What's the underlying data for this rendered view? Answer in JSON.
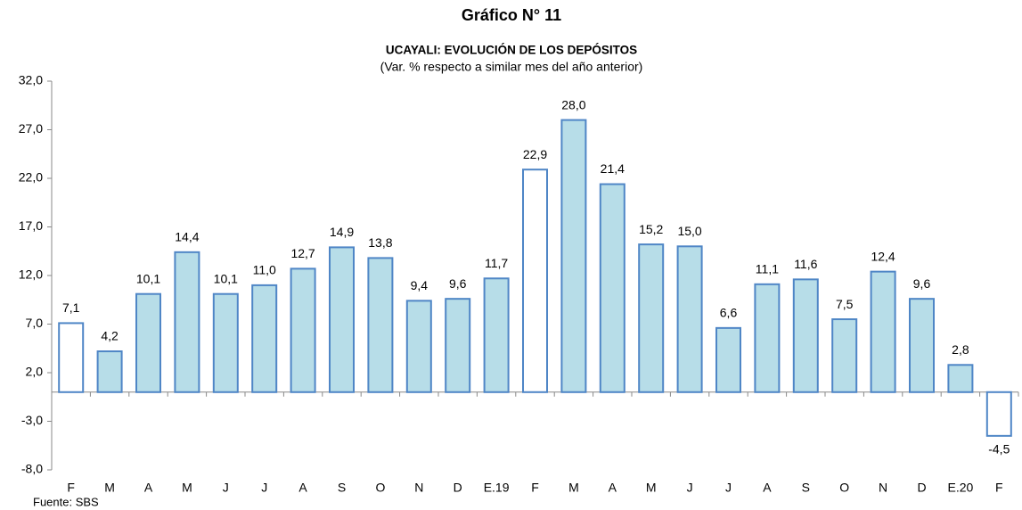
{
  "chart_data": {
    "type": "bar",
    "title": "Gráfico N° 11",
    "subtitle": "UCAYALI: EVOLUCIÓN DE LOS DEPÓSITOS",
    "y_label": "(Var. % respecto a similar mes del año anterior)",
    "source": "Fuente: SBS",
    "categories": [
      "F",
      "M",
      "A",
      "M",
      "J",
      "J",
      "A",
      "S",
      "O",
      "N",
      "D",
      "E.19",
      "F",
      "M",
      "A",
      "M",
      "J",
      "J",
      "A",
      "S",
      "O",
      "N",
      "D",
      "E.20",
      "F"
    ],
    "values": [
      7.1,
      4.2,
      10.1,
      14.4,
      10.1,
      11.0,
      12.7,
      14.9,
      13.8,
      9.4,
      9.6,
      11.7,
      22.9,
      28.0,
      21.4,
      15.2,
      15.0,
      6.6,
      11.1,
      11.6,
      7.5,
      12.4,
      9.6,
      2.8,
      -4.5
    ],
    "value_labels": [
      "7,1",
      "4,2",
      "10,1",
      "14,4",
      "10,1",
      "11,0",
      "12,7",
      "14,9",
      "13,8",
      "9,4",
      "9,6",
      "11,7",
      "22,9",
      "28,0",
      "21,4",
      "15,2",
      "15,0",
      "6,6",
      "11,1",
      "11,6",
      "7,5",
      "12,4",
      "9,6",
      "2,8",
      "-4,5"
    ],
    "colors": [
      "#ffffff",
      "#b7dde8",
      "#b7dde8",
      "#b7dde8",
      "#b7dde8",
      "#b7dde8",
      "#b7dde8",
      "#b7dde8",
      "#b7dde8",
      "#b7dde8",
      "#b7dde8",
      "#b7dde8",
      "#ffffff",
      "#b7dde8",
      "#b7dde8",
      "#b7dde8",
      "#b7dde8",
      "#b7dde8",
      "#b7dde8",
      "#b7dde8",
      "#b7dde8",
      "#b7dde8",
      "#b7dde8",
      "#b7dde8",
      "#ffffff"
    ],
    "edge_color": "#4f86c6",
    "ylim": [
      -8,
      32
    ],
    "yticks": [
      {
        "value": -8,
        "label": "-8,0"
      },
      {
        "value": -3,
        "label": "-3,0"
      },
      {
        "value": 2,
        "label": "2,0"
      },
      {
        "value": 7,
        "label": "7,0"
      },
      {
        "value": 12,
        "label": "12,0"
      },
      {
        "value": 17,
        "label": "17,0"
      },
      {
        "value": 22,
        "label": "22,0"
      },
      {
        "value": 27,
        "label": "27,0"
      },
      {
        "value": 32,
        "label": "32,0"
      }
    ],
    "grid": false
  }
}
